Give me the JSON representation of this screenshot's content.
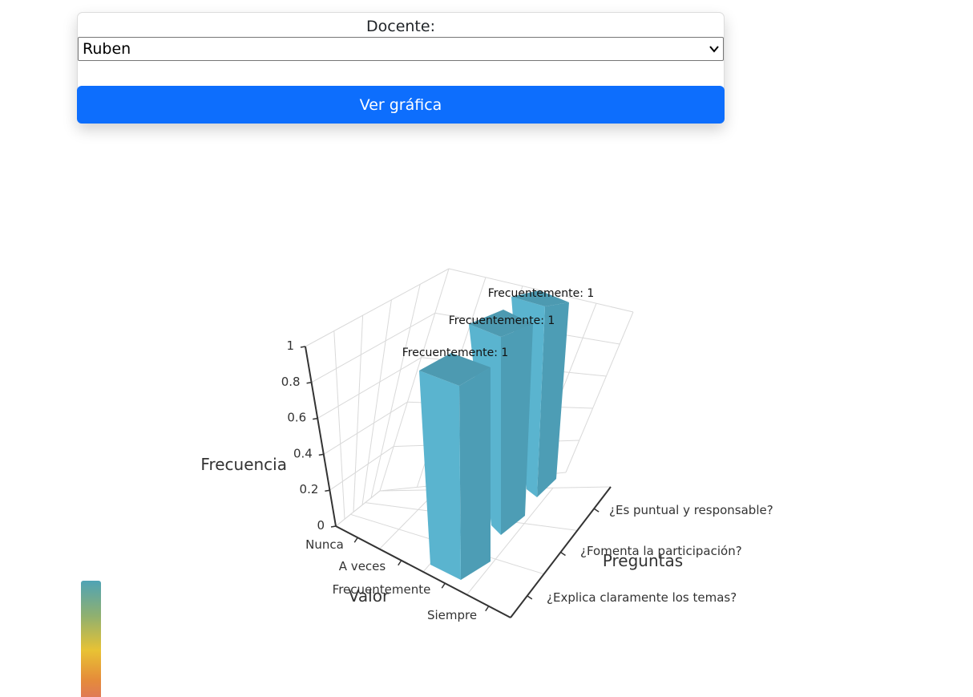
{
  "form": {
    "label": "Docente:",
    "selected_value": "Ruben",
    "submit_label": "Ver gráfica"
  },
  "chart_data": {
    "type": "bar3d",
    "x_axis_name": "Preguntas",
    "y_axis_name": "Valor",
    "z_axis_name": "Frecuencia",
    "x_categories": [
      "¿Explica claramente los temas?",
      "¿Fomenta la participación?",
      "¿Es puntual y responsable?"
    ],
    "y_categories": [
      "Nunca",
      "A veces",
      "Frecuentemente",
      "Siempre"
    ],
    "z_ticks": [
      "0",
      "0.2",
      "0.4",
      "0.6",
      "0.8",
      "1"
    ],
    "z_range": [
      0,
      1
    ],
    "bars": [
      {
        "question": "¿Explica claramente los temas?",
        "value": "Frecuentemente",
        "count": 1,
        "label": "Frecuentemente: 1"
      },
      {
        "question": "¿Fomenta la participación?",
        "value": "Frecuentemente",
        "count": 1,
        "label": "Frecuentemente: 1"
      },
      {
        "question": "¿Es puntual y responsable?",
        "value": "Frecuentemente",
        "count": 1,
        "label": "Frecuentemente: 1"
      }
    ],
    "bar_color": "#5ab4cf",
    "visual_map_colors": [
      "#4fa3b5",
      "#e8c234",
      "#e07a55"
    ]
  }
}
